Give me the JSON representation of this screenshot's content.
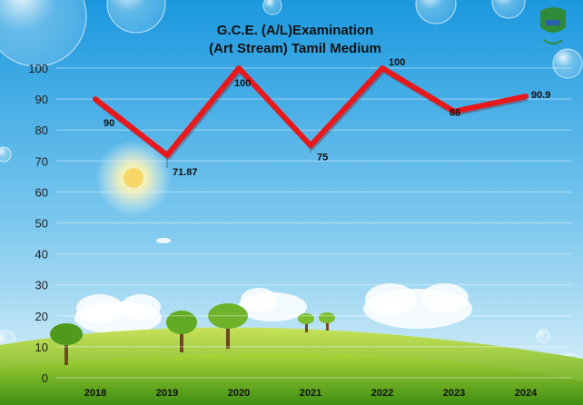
{
  "chart_data": {
    "type": "line",
    "title_line1": "G.C.E. (A/L)Examination",
    "title_line2": "(Art Stream)  Tamil  Medium",
    "categories": [
      "2018",
      "2019",
      "2020",
      "2021",
      "2022",
      "2023",
      "2024"
    ],
    "values": [
      90,
      71.87,
      100,
      75,
      100,
      86,
      90.9
    ],
    "value_labels": [
      "90",
      "71.87",
      "100",
      "75",
      "100",
      "86",
      "90.9"
    ],
    "y_ticks": [
      "0",
      "10",
      "20",
      "30",
      "40",
      "50",
      "60",
      "70",
      "80",
      "90",
      "100"
    ],
    "ylim": [
      0,
      100
    ],
    "series_color": "#e8191c",
    "grid": true,
    "legend": "none"
  },
  "colors": {
    "sky_top": "#1f9fe3",
    "sky_bottom": "#e2f4fb",
    "hill": "#5aa51f",
    "hill_light": "#9ccc35"
  }
}
